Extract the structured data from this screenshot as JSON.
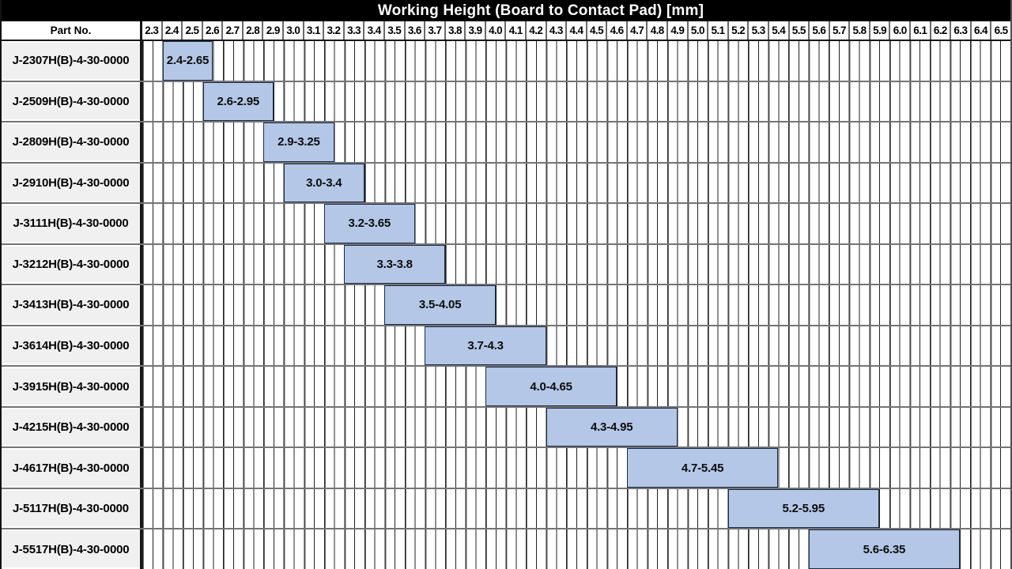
{
  "header": {
    "part_no_label": "Part No."
  },
  "colors": {
    "title_bg": "#000000",
    "title_text": "#ffffff",
    "bar_fill": "#b4c7e7",
    "bar_border": "#1c2b45",
    "part_cell_bg": "#f0f0f0",
    "grid_minor": "#212121",
    "grid_major": "#6e6e6e"
  },
  "chart_data": {
    "type": "bar",
    "subtype": "horizontal-range",
    "title": "Working Height (Board to Contact Pad) [mm]",
    "x_axis": {
      "unit": "mm",
      "min": 2.3,
      "max": 6.6,
      "major_step": 0.1,
      "minor_step": 0.05,
      "grid": "on",
      "tick_labels": [
        "2.3",
        "2.4",
        "2.5",
        "2.6",
        "2.7",
        "2.8",
        "2.9",
        "3.0",
        "3.1",
        "3.2",
        "3.3",
        "3.4",
        "3.5",
        "3.6",
        "3.7",
        "3.8",
        "3.9",
        "4.0",
        "4.1",
        "4.2",
        "4.3",
        "4.4",
        "4.5",
        "4.6",
        "4.7",
        "4.8",
        "4.9",
        "5.0",
        "5.1",
        "5.2",
        "5.3",
        "5.4",
        "5.5",
        "5.6",
        "5.7",
        "5.8",
        "5.9",
        "6.0",
        "6.1",
        "6.2",
        "6.3",
        "6.4",
        "6.5"
      ]
    },
    "rows": [
      {
        "part_no": "J-2307H(B)-4-30-0000",
        "start": 2.4,
        "end": 2.65,
        "range_label": "2.4-2.65"
      },
      {
        "part_no": "J-2509H(B)-4-30-0000",
        "start": 2.6,
        "end": 2.95,
        "range_label": "2.6-2.95"
      },
      {
        "part_no": "J-2809H(B)-4-30-0000",
        "start": 2.9,
        "end": 3.25,
        "range_label": "2.9-3.25"
      },
      {
        "part_no": "J-2910H(B)-4-30-0000",
        "start": 3.0,
        "end": 3.4,
        "range_label": "3.0-3.4"
      },
      {
        "part_no": "J-3111H(B)-4-30-0000",
        "start": 3.2,
        "end": 3.65,
        "range_label": "3.2-3.65"
      },
      {
        "part_no": "J-3212H(B)-4-30-0000",
        "start": 3.3,
        "end": 3.8,
        "range_label": "3.3-3.8"
      },
      {
        "part_no": "J-3413H(B)-4-30-0000",
        "start": 3.5,
        "end": 4.05,
        "range_label": "3.5-4.05"
      },
      {
        "part_no": "J-3614H(B)-4-30-0000",
        "start": 3.7,
        "end": 4.3,
        "range_label": "3.7-4.3"
      },
      {
        "part_no": "J-3915H(B)-4-30-0000",
        "start": 4.0,
        "end": 4.65,
        "range_label": "4.0-4.65"
      },
      {
        "part_no": "J-4215H(B)-4-30-0000",
        "start": 4.3,
        "end": 4.95,
        "range_label": "4.3-4.95"
      },
      {
        "part_no": "J-4617H(B)-4-30-0000",
        "start": 4.7,
        "end": 5.45,
        "range_label": "4.7-5.45"
      },
      {
        "part_no": "J-5117H(B)-4-30-0000",
        "start": 5.2,
        "end": 5.95,
        "range_label": "5.2-5.95"
      },
      {
        "part_no": "J-5517H(B)-4-30-0000",
        "start": 5.6,
        "end": 6.35,
        "range_label": "5.6-6.35"
      }
    ]
  }
}
